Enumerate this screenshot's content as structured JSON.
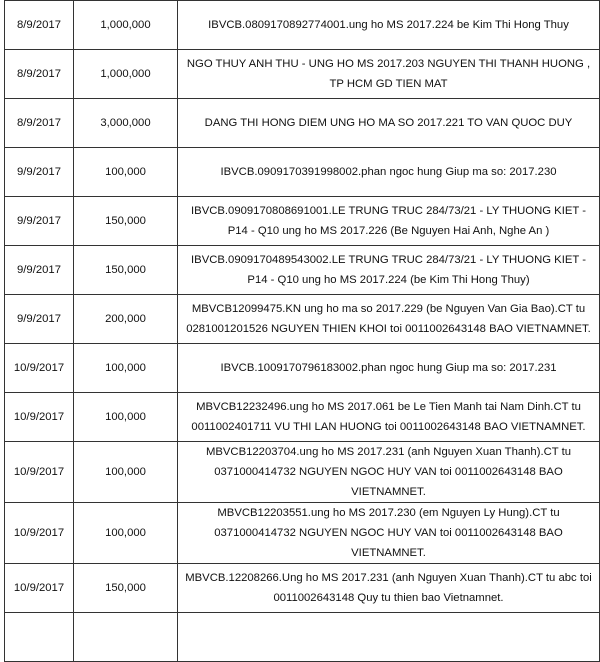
{
  "rows": [
    {
      "date": "8/9/2017",
      "amount": "1,000,000",
      "description": "IBVCB.0809170892774001.ung ho MS 2017.224 be Kim Thi Hong Thuy"
    },
    {
      "date": "8/9/2017",
      "amount": "1,000,000",
      "description": "NGO THUY ANH THU - UNG HO MS 2017.203 NGUYEN THI THANH HUONG , TP HCM GD TIEN MAT"
    },
    {
      "date": "8/9/2017",
      "amount": "3,000,000",
      "description": "DANG THI HONG DIEM UNG HO MA SO 2017.221 TO VAN QUOC DUY"
    },
    {
      "date": "9/9/2017",
      "amount": "100,000",
      "description": "IBVCB.0909170391998002.phan ngoc hung Giup ma so: 2017.230"
    },
    {
      "date": "9/9/2017",
      "amount": "150,000",
      "description": "IBVCB.0909170808691001.LE TRUNG TRUC 284/73/21 - LY THUONG KIET - P14 - Q10 ung ho MS 2017.226 (Be Nguyen Hai Anh, Nghe An )"
    },
    {
      "date": "9/9/2017",
      "amount": "150,000",
      "description": "IBVCB.0909170489543002.LE TRUNG TRUC 284/73/21 - LY THUONG KIET - P14 - Q10 ung ho MS 2017.224 (be Kim Thi Hong Thuy)"
    },
    {
      "date": "9/9/2017",
      "amount": "200,000",
      "description": "MBVCB12099475.KN ung ho ma so 2017.229 (be Nguyen Van Gia Bao).CT tu 0281001201526 NGUYEN THIEN KHOI toi 0011002643148 BAO VIETNAMNET."
    },
    {
      "date": "10/9/2017",
      "amount": "100,000",
      "description": "IBVCB.1009170796183002.phan ngoc hung Giup ma so: 2017.231"
    },
    {
      "date": "10/9/2017",
      "amount": "100,000",
      "description": "MBVCB12232496.ung ho MS 2017.061 be Le Tien Manh tai Nam Dinh.CT tu 0011002401711 VU THI LAN HUONG toi 0011002643148 BAO VIETNAMNET."
    },
    {
      "date": "10/9/2017",
      "amount": "100,000",
      "description": "MBVCB12203704.ung ho MS 2017.231 (anh Nguyen Xuan Thanh).CT tu 0371000414732 NGUYEN NGOC HUY VAN toi 0011002643148 BAO VIETNAMNET."
    },
    {
      "date": "10/9/2017",
      "amount": "100,000",
      "description": "MBVCB12203551.ung ho MS 2017.230 (em Nguyen Ly Hung).CT tu 0371000414732 NGUYEN NGOC HUY VAN toi 0011002643148 BAO VIETNAMNET."
    },
    {
      "date": "10/9/2017",
      "amount": "150,000",
      "description": "MBVCB.12208266.Ung ho MS 2017.231 (anh Nguyen Xuan Thanh).CT tu abc toi 0011002643148 Quy tu thien bao Vietnamnet."
    }
  ]
}
